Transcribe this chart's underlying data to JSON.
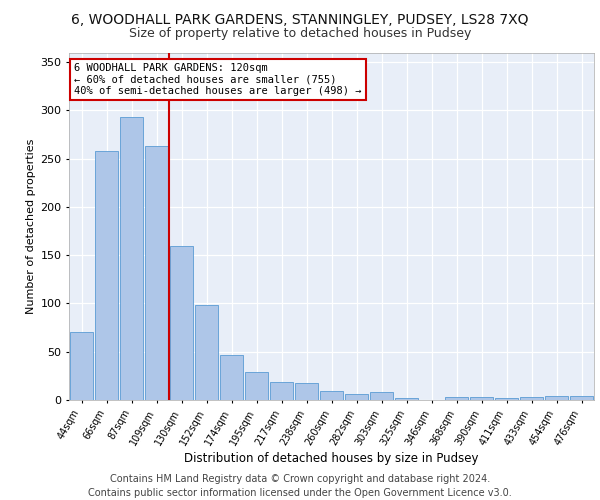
{
  "title": "6, WOODHALL PARK GARDENS, STANNINGLEY, PUDSEY, LS28 7XQ",
  "subtitle": "Size of property relative to detached houses in Pudsey",
  "xlabel": "Distribution of detached houses by size in Pudsey",
  "ylabel": "Number of detached properties",
  "categories": [
    "44sqm",
    "66sqm",
    "87sqm",
    "109sqm",
    "130sqm",
    "152sqm",
    "174sqm",
    "195sqm",
    "217sqm",
    "238sqm",
    "260sqm",
    "282sqm",
    "303sqm",
    "325sqm",
    "346sqm",
    "368sqm",
    "390sqm",
    "411sqm",
    "433sqm",
    "454sqm",
    "476sqm"
  ],
  "values": [
    70,
    258,
    293,
    263,
    160,
    98,
    47,
    29,
    19,
    18,
    9,
    6,
    8,
    2,
    0,
    3,
    3,
    2,
    3,
    4,
    4
  ],
  "bar_color": "#aec6e8",
  "bar_edge_color": "#5a9bd4",
  "vline_pos": 3.5,
  "vline_color": "#cc0000",
  "annotation_text": "6 WOODHALL PARK GARDENS: 120sqm\n← 60% of detached houses are smaller (755)\n40% of semi-detached houses are larger (498) →",
  "annotation_box_color": "#ffffff",
  "annotation_box_edge": "#cc0000",
  "ylim": [
    0,
    360
  ],
  "yticks": [
    0,
    50,
    100,
    150,
    200,
    250,
    300,
    350
  ],
  "footer": "Contains HM Land Registry data © Crown copyright and database right 2024.\nContains public sector information licensed under the Open Government Licence v3.0.",
  "bg_color": "#e8eef8",
  "title_fontsize": 10,
  "subtitle_fontsize": 9,
  "footer_fontsize": 7
}
